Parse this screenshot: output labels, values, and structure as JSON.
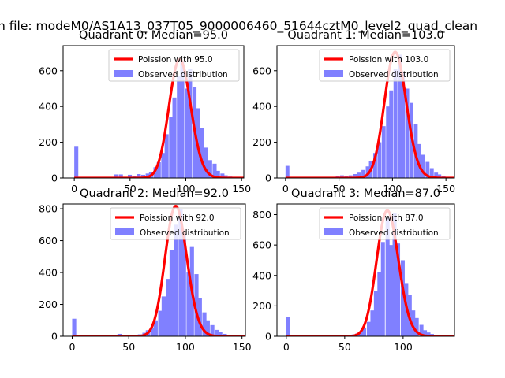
{
  "figure": {
    "suptitle": "n file: modeM0/AS1A13_037T05_9000006460_51644cztM0_level2_quad_clean"
  },
  "colors": {
    "bars": "#8080ff",
    "poisson_line": "#ff0000",
    "axes": "#000000"
  },
  "chart_data": [
    {
      "type": "bar",
      "title": "Quadrant 0: Median=95.0",
      "xlim": [
        -10,
        152
      ],
      "ylim": [
        0,
        740
      ],
      "xticks": [
        0,
        50,
        100,
        150
      ],
      "yticks": [
        0,
        200,
        400,
        600
      ],
      "legend_placement": "top-right",
      "poisson_mean": 95.0,
      "poisson_label": "Poission with 95.0",
      "observed_label": "Observed distribution",
      "bin_width": 3.6,
      "histogram": [
        {
          "x": 0,
          "count": 175
        },
        {
          "x": 36,
          "count": 20
        },
        {
          "x": 40,
          "count": 20
        },
        {
          "x": 48,
          "count": 18
        },
        {
          "x": 52,
          "count": 12
        },
        {
          "x": 56,
          "count": 22
        },
        {
          "x": 60,
          "count": 18
        },
        {
          "x": 64,
          "count": 25
        },
        {
          "x": 67,
          "count": 35
        },
        {
          "x": 71,
          "count": 60
        },
        {
          "x": 74,
          "count": 88
        },
        {
          "x": 78,
          "count": 140
        },
        {
          "x": 81,
          "count": 245
        },
        {
          "x": 85,
          "count": 340
        },
        {
          "x": 88,
          "count": 450
        },
        {
          "x": 92,
          "count": 570
        },
        {
          "x": 95,
          "count": 650
        },
        {
          "x": 99,
          "count": 500
        },
        {
          "x": 102,
          "count": 610
        },
        {
          "x": 106,
          "count": 510
        },
        {
          "x": 109,
          "count": 390
        },
        {
          "x": 113,
          "count": 280
        },
        {
          "x": 116,
          "count": 170
        },
        {
          "x": 120,
          "count": 100
        },
        {
          "x": 124,
          "count": 80
        },
        {
          "x": 127,
          "count": 40
        },
        {
          "x": 131,
          "count": 25
        },
        {
          "x": 134,
          "count": 15
        },
        {
          "x": 138,
          "count": 8
        },
        {
          "x": 141,
          "count": 5
        }
      ]
    },
    {
      "type": "bar",
      "title": "Quadrant 1: Median=103.0",
      "xlim": [
        -8,
        158
      ],
      "ylim": [
        0,
        740
      ],
      "xticks": [
        0,
        50,
        100,
        150
      ],
      "yticks": [
        0,
        200,
        400,
        600
      ],
      "legend_placement": "top-right",
      "poisson_mean": 103.0,
      "poisson_label": "Poission with 103.0",
      "observed_label": "Observed distribution",
      "bin_width": 3.6,
      "histogram": [
        {
          "x": 0,
          "count": 68
        },
        {
          "x": 47,
          "count": 12
        },
        {
          "x": 51,
          "count": 15
        },
        {
          "x": 55,
          "count": 12
        },
        {
          "x": 59,
          "count": 15
        },
        {
          "x": 63,
          "count": 22
        },
        {
          "x": 67,
          "count": 30
        },
        {
          "x": 71,
          "count": 45
        },
        {
          "x": 75,
          "count": 65
        },
        {
          "x": 78,
          "count": 95
        },
        {
          "x": 82,
          "count": 140
        },
        {
          "x": 86,
          "count": 200
        },
        {
          "x": 90,
          "count": 290
        },
        {
          "x": 94,
          "count": 400
        },
        {
          "x": 97,
          "count": 490
        },
        {
          "x": 101,
          "count": 610
        },
        {
          "x": 105,
          "count": 690
        },
        {
          "x": 108,
          "count": 590
        },
        {
          "x": 112,
          "count": 500
        },
        {
          "x": 116,
          "count": 420
        },
        {
          "x": 120,
          "count": 300
        },
        {
          "x": 123,
          "count": 190
        },
        {
          "x": 127,
          "count": 130
        },
        {
          "x": 131,
          "count": 90
        },
        {
          "x": 135,
          "count": 55
        },
        {
          "x": 139,
          "count": 30
        },
        {
          "x": 142,
          "count": 20
        },
        {
          "x": 146,
          "count": 10
        },
        {
          "x": 150,
          "count": 5
        }
      ]
    },
    {
      "type": "bar",
      "title": "Quadrant 2: Median=92.0",
      "xlim": [
        -8,
        153
      ],
      "ylim": [
        0,
        830
      ],
      "xticks": [
        0,
        50,
        100,
        150
      ],
      "yticks": [
        0,
        200,
        400,
        600,
        800
      ],
      "legend_placement": "top-right",
      "poisson_mean": 92.0,
      "poisson_label": "Poission with 92.0",
      "observed_label": "Observed distribution",
      "bin_width": 3.6,
      "histogram": [
        {
          "x": 0,
          "count": 110
        },
        {
          "x": 40,
          "count": 15
        },
        {
          "x": 54,
          "count": 8
        },
        {
          "x": 58,
          "count": 12
        },
        {
          "x": 62,
          "count": 22
        },
        {
          "x": 65,
          "count": 38
        },
        {
          "x": 69,
          "count": 55
        },
        {
          "x": 72,
          "count": 100
        },
        {
          "x": 76,
          "count": 160
        },
        {
          "x": 79,
          "count": 250
        },
        {
          "x": 83,
          "count": 360
        },
        {
          "x": 86,
          "count": 540
        },
        {
          "x": 90,
          "count": 700
        },
        {
          "x": 94,
          "count": 800
        },
        {
          "x": 97,
          "count": 640
        },
        {
          "x": 101,
          "count": 400
        },
        {
          "x": 104,
          "count": 560
        },
        {
          "x": 108,
          "count": 390
        },
        {
          "x": 111,
          "count": 240
        },
        {
          "x": 115,
          "count": 150
        },
        {
          "x": 118,
          "count": 100
        },
        {
          "x": 122,
          "count": 70
        },
        {
          "x": 126,
          "count": 40
        },
        {
          "x": 129,
          "count": 25
        },
        {
          "x": 133,
          "count": 15
        },
        {
          "x": 136,
          "count": 8
        },
        {
          "x": 140,
          "count": 5
        },
        {
          "x": 143,
          "count": 3
        }
      ]
    },
    {
      "type": "bar",
      "title": "Quadrant 3: Median=87.0",
      "xlim": [
        -8,
        144
      ],
      "ylim": [
        0,
        870
      ],
      "xticks": [
        0,
        50,
        100
      ],
      "yticks": [
        0,
        200,
        400,
        600,
        800
      ],
      "legend_placement": "top-right",
      "poisson_mean": 87.0,
      "poisson_label": "Poission with 87.0",
      "observed_label": "Observed distribution",
      "bin_width": 3.4,
      "histogram": [
        {
          "x": 0,
          "count": 125
        },
        {
          "x": 52,
          "count": 5
        },
        {
          "x": 56,
          "count": 12
        },
        {
          "x": 59,
          "count": 18
        },
        {
          "x": 62,
          "count": 30
        },
        {
          "x": 65,
          "count": 55
        },
        {
          "x": 69,
          "count": 95
        },
        {
          "x": 72,
          "count": 170
        },
        {
          "x": 75,
          "count": 300
        },
        {
          "x": 78,
          "count": 420
        },
        {
          "x": 81,
          "count": 620
        },
        {
          "x": 85,
          "count": 780
        },
        {
          "x": 88,
          "count": 600
        },
        {
          "x": 91,
          "count": 810
        },
        {
          "x": 94,
          "count": 610
        },
        {
          "x": 98,
          "count": 500
        },
        {
          "x": 101,
          "count": 350
        },
        {
          "x": 104,
          "count": 270
        },
        {
          "x": 107,
          "count": 170
        },
        {
          "x": 110,
          "count": 120
        },
        {
          "x": 114,
          "count": 75
        },
        {
          "x": 117,
          "count": 40
        },
        {
          "x": 120,
          "count": 25
        },
        {
          "x": 123,
          "count": 15
        },
        {
          "x": 127,
          "count": 8
        },
        {
          "x": 130,
          "count": 4
        }
      ]
    }
  ]
}
